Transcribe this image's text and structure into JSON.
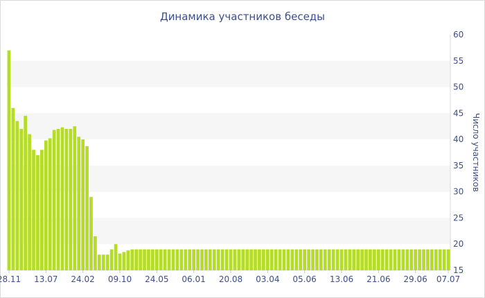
{
  "chart_data": {
    "type": "bar",
    "title": "Динамика участников беседы",
    "ylabel": "Число участников",
    "xlabel": "",
    "ylim": [
      15,
      60
    ],
    "yticks": [
      15,
      20,
      25,
      30,
      35,
      40,
      45,
      50,
      55,
      60
    ],
    "y_axis_side": "right",
    "grid": "alternating horizontal bands",
    "bar_color": "#b5dd27",
    "band_color": "#f6f6f6",
    "text_color": "#3a4f8c",
    "x_tick_labels": [
      {
        "label": "28.11",
        "index": 0
      },
      {
        "label": "13.07",
        "index": 9
      },
      {
        "label": "24.02",
        "index": 18
      },
      {
        "label": "09.10",
        "index": 27
      },
      {
        "label": "24.05",
        "index": 36
      },
      {
        "label": "06.01",
        "index": 45
      },
      {
        "label": "20.08",
        "index": 54
      },
      {
        "label": "03.04",
        "index": 63
      },
      {
        "label": "05.06",
        "index": 72
      },
      {
        "label": "13.06",
        "index": 81
      },
      {
        "label": "21.06",
        "index": 90
      },
      {
        "label": "29.06",
        "index": 99
      },
      {
        "label": "07.07",
        "index": 107
      }
    ],
    "values": [
      57,
      46,
      43.5,
      42,
      44.5,
      41,
      38,
      37,
      38,
      39.8,
      40.2,
      41.8,
      42,
      42.3,
      42,
      42,
      42.5,
      40.5,
      40,
      38.7,
      29,
      21.5,
      18,
      18,
      18,
      19,
      20,
      18.2,
      18.5,
      18.8,
      19,
      19,
      19,
      19,
      19,
      19,
      19,
      19,
      19,
      19,
      19,
      19,
      19,
      19,
      19,
      19,
      19,
      19,
      19,
      19,
      19,
      19,
      19,
      19,
      19,
      19,
      19,
      19,
      19,
      19,
      19,
      19,
      19,
      19,
      19,
      19,
      19,
      19,
      19,
      19,
      19,
      19,
      19,
      19,
      19,
      19,
      19,
      19,
      19,
      19,
      19,
      19,
      19,
      19,
      19,
      19,
      19,
      19,
      19,
      19,
      19,
      19,
      19,
      19,
      19,
      19,
      19,
      19,
      19,
      19,
      19,
      19,
      19,
      19,
      19,
      19,
      19,
      19
    ]
  }
}
